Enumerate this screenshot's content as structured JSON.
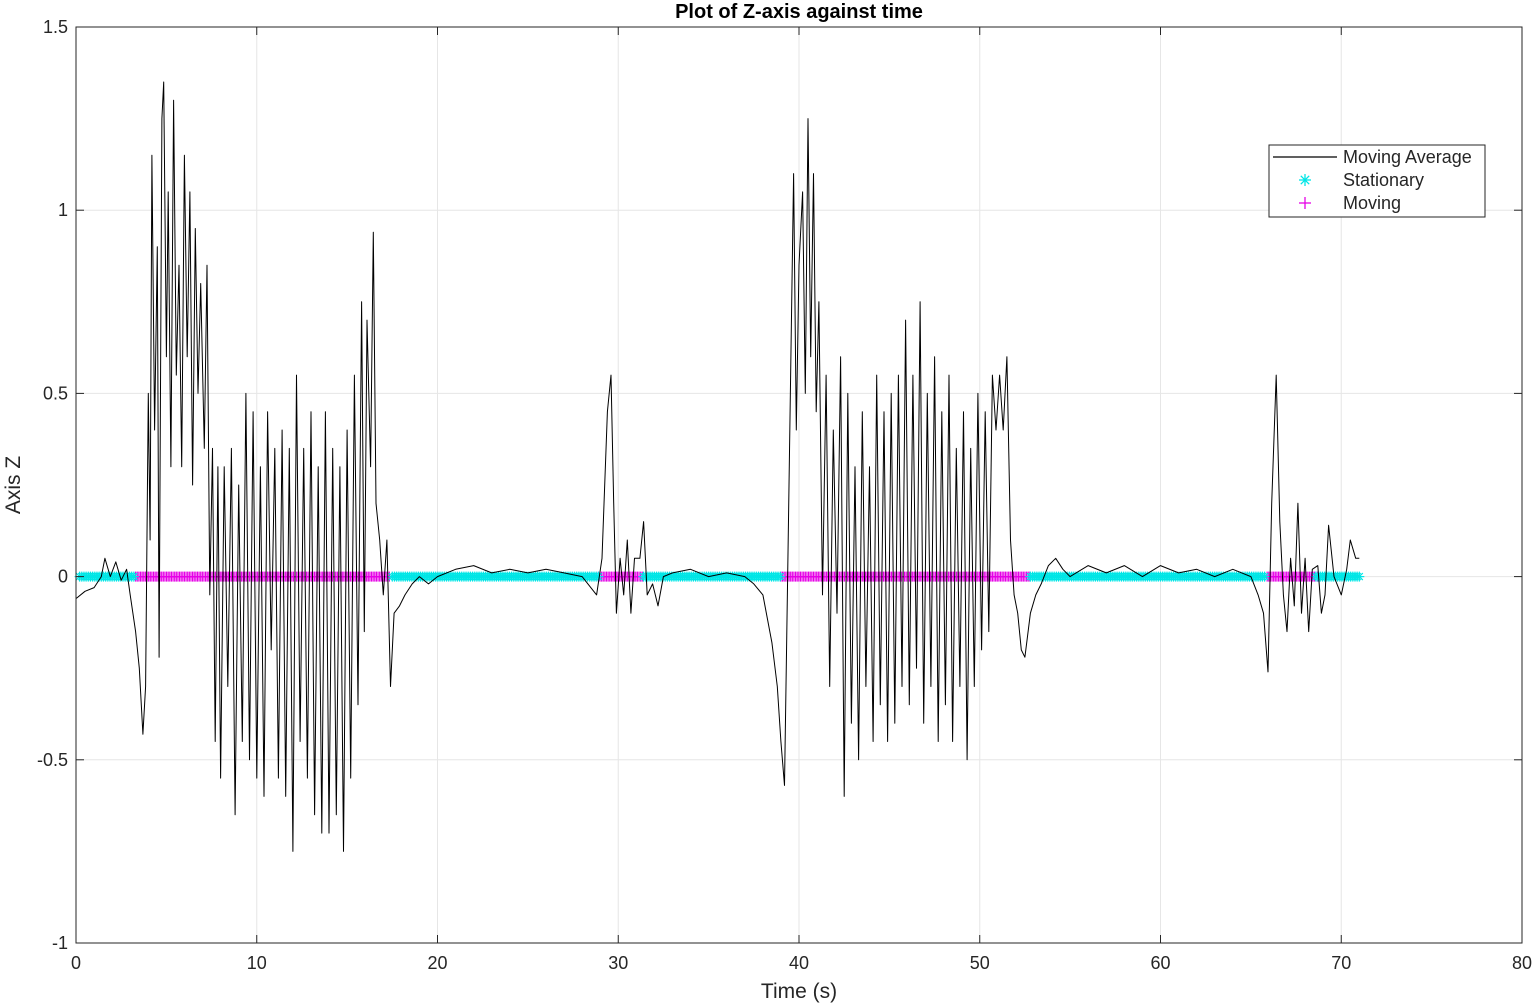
{
  "chart_data": {
    "type": "line",
    "title": "Plot of Z-axis against time",
    "xlabel": "Time (s)",
    "ylabel": "Axis Z",
    "xlim": [
      0,
      80
    ],
    "ylim": [
      -1,
      1.5
    ],
    "grid": true,
    "x_ticks": [
      0,
      10,
      20,
      30,
      40,
      50,
      60,
      70,
      80
    ],
    "x_tick_labels": [
      "0",
      "10",
      "20",
      "30",
      "40",
      "50",
      "60",
      "70",
      "80"
    ],
    "y_ticks": [
      -1,
      -0.5,
      0,
      0.5,
      1,
      1.5
    ],
    "y_tick_labels": [
      "-1",
      "-0.5",
      "0",
      "0.5",
      "1",
      "1.5"
    ],
    "legend_position": "top-right",
    "colors": {
      "moving_average": "#000000",
      "stationary": "#00e6e6",
      "moving": "#e600e6",
      "grid": "#e6e6e6",
      "axes": "#262626"
    },
    "series": [
      {
        "name": "Moving Average",
        "kind": "line",
        "points": [
          [
            0.0,
            -0.06
          ],
          [
            0.5,
            -0.04
          ],
          [
            1.0,
            -0.03
          ],
          [
            1.4,
            0.0
          ],
          [
            1.6,
            0.05
          ],
          [
            1.9,
            0.0
          ],
          [
            2.2,
            0.04
          ],
          [
            2.5,
            -0.01
          ],
          [
            2.8,
            0.02
          ],
          [
            3.0,
            -0.05
          ],
          [
            3.3,
            -0.15
          ],
          [
            3.5,
            -0.25
          ],
          [
            3.7,
            -0.43
          ],
          [
            3.85,
            -0.3
          ],
          [
            4.0,
            0.5
          ],
          [
            4.1,
            0.1
          ],
          [
            4.2,
            1.15
          ],
          [
            4.35,
            0.4
          ],
          [
            4.5,
            0.9
          ],
          [
            4.6,
            -0.22
          ],
          [
            4.75,
            1.25
          ],
          [
            4.85,
            1.35
          ],
          [
            5.0,
            0.6
          ],
          [
            5.1,
            1.05
          ],
          [
            5.25,
            0.3
          ],
          [
            5.4,
            1.3
          ],
          [
            5.55,
            0.55
          ],
          [
            5.7,
            0.85
          ],
          [
            5.85,
            0.3
          ],
          [
            6.0,
            1.15
          ],
          [
            6.15,
            0.6
          ],
          [
            6.3,
            1.05
          ],
          [
            6.45,
            0.25
          ],
          [
            6.6,
            0.95
          ],
          [
            6.75,
            0.5
          ],
          [
            6.9,
            0.8
          ],
          [
            7.1,
            0.35
          ],
          [
            7.25,
            0.85
          ],
          [
            7.4,
            -0.05
          ],
          [
            7.55,
            0.35
          ],
          [
            7.7,
            -0.45
          ],
          [
            7.85,
            0.3
          ],
          [
            8.0,
            -0.55
          ],
          [
            8.2,
            0.3
          ],
          [
            8.4,
            -0.3
          ],
          [
            8.6,
            0.35
          ],
          [
            8.8,
            -0.65
          ],
          [
            9.0,
            0.25
          ],
          [
            9.2,
            -0.45
          ],
          [
            9.4,
            0.5
          ],
          [
            9.6,
            -0.5
          ],
          [
            9.8,
            0.45
          ],
          [
            10.0,
            -0.55
          ],
          [
            10.2,
            0.3
          ],
          [
            10.4,
            -0.6
          ],
          [
            10.6,
            0.45
          ],
          [
            10.8,
            -0.2
          ],
          [
            11.0,
            0.35
          ],
          [
            11.2,
            -0.55
          ],
          [
            11.4,
            0.4
          ],
          [
            11.6,
            -0.6
          ],
          [
            11.8,
            0.35
          ],
          [
            12.0,
            -0.75
          ],
          [
            12.2,
            0.55
          ],
          [
            12.4,
            -0.45
          ],
          [
            12.6,
            0.35
          ],
          [
            12.8,
            -0.55
          ],
          [
            13.0,
            0.45
          ],
          [
            13.2,
            -0.65
          ],
          [
            13.4,
            0.3
          ],
          [
            13.6,
            -0.7
          ],
          [
            13.8,
            0.45
          ],
          [
            14.0,
            -0.7
          ],
          [
            14.2,
            0.35
          ],
          [
            14.4,
            -0.65
          ],
          [
            14.6,
            0.3
          ],
          [
            14.8,
            -0.75
          ],
          [
            15.0,
            0.4
          ],
          [
            15.2,
            -0.55
          ],
          [
            15.4,
            0.55
          ],
          [
            15.6,
            -0.35
          ],
          [
            15.8,
            0.75
          ],
          [
            15.95,
            -0.15
          ],
          [
            16.1,
            0.7
          ],
          [
            16.3,
            0.3
          ],
          [
            16.45,
            0.94
          ],
          [
            16.6,
            0.2
          ],
          [
            16.8,
            0.1
          ],
          [
            17.0,
            -0.05
          ],
          [
            17.2,
            0.1
          ],
          [
            17.4,
            -0.3
          ],
          [
            17.6,
            -0.1
          ],
          [
            17.9,
            -0.08
          ],
          [
            18.2,
            -0.05
          ],
          [
            18.6,
            -0.02
          ],
          [
            19.0,
            0.0
          ],
          [
            19.5,
            -0.02
          ],
          [
            20.0,
            0.0
          ],
          [
            21.0,
            0.02
          ],
          [
            22.0,
            0.03
          ],
          [
            23.0,
            0.01
          ],
          [
            24.0,
            0.02
          ],
          [
            25.0,
            0.01
          ],
          [
            26.0,
            0.02
          ],
          [
            27.0,
            0.01
          ],
          [
            28.0,
            0.0
          ],
          [
            28.8,
            -0.05
          ],
          [
            29.1,
            0.05
          ],
          [
            29.4,
            0.45
          ],
          [
            29.6,
            0.55
          ],
          [
            29.75,
            0.2
          ],
          [
            29.9,
            -0.1
          ],
          [
            30.1,
            0.05
          ],
          [
            30.3,
            -0.05
          ],
          [
            30.5,
            0.1
          ],
          [
            30.7,
            -0.1
          ],
          [
            30.9,
            0.05
          ],
          [
            31.2,
            0.05
          ],
          [
            31.4,
            0.15
          ],
          [
            31.6,
            -0.05
          ],
          [
            31.9,
            -0.02
          ],
          [
            32.2,
            -0.08
          ],
          [
            32.5,
            0.0
          ],
          [
            33.0,
            0.01
          ],
          [
            34.0,
            0.02
          ],
          [
            35.0,
            0.0
          ],
          [
            36.0,
            0.01
          ],
          [
            37.0,
            0.0
          ],
          [
            37.5,
            -0.02
          ],
          [
            38.0,
            -0.05
          ],
          [
            38.5,
            -0.18
          ],
          [
            38.8,
            -0.3
          ],
          [
            39.0,
            -0.45
          ],
          [
            39.2,
            -0.57
          ],
          [
            39.4,
            0.1
          ],
          [
            39.55,
            0.6
          ],
          [
            39.7,
            1.1
          ],
          [
            39.85,
            0.4
          ],
          [
            40.0,
            0.85
          ],
          [
            40.2,
            1.05
          ],
          [
            40.35,
            0.5
          ],
          [
            40.5,
            1.25
          ],
          [
            40.65,
            0.6
          ],
          [
            40.8,
            1.1
          ],
          [
            40.95,
            0.45
          ],
          [
            41.1,
            0.75
          ],
          [
            41.3,
            -0.05
          ],
          [
            41.5,
            0.55
          ],
          [
            41.7,
            -0.3
          ],
          [
            41.9,
            0.4
          ],
          [
            42.1,
            -0.1
          ],
          [
            42.3,
            0.6
          ],
          [
            42.5,
            -0.6
          ],
          [
            42.7,
            0.5
          ],
          [
            42.9,
            -0.4
          ],
          [
            43.1,
            0.3
          ],
          [
            43.3,
            -0.5
          ],
          [
            43.5,
            0.45
          ],
          [
            43.7,
            -0.3
          ],
          [
            43.9,
            0.3
          ],
          [
            44.1,
            -0.45
          ],
          [
            44.3,
            0.55
          ],
          [
            44.5,
            -0.35
          ],
          [
            44.7,
            0.45
          ],
          [
            44.9,
            -0.45
          ],
          [
            45.1,
            0.5
          ],
          [
            45.3,
            -0.4
          ],
          [
            45.5,
            0.55
          ],
          [
            45.7,
            -0.3
          ],
          [
            45.9,
            0.7
          ],
          [
            46.1,
            -0.35
          ],
          [
            46.3,
            0.55
          ],
          [
            46.5,
            -0.25
          ],
          [
            46.7,
            0.75
          ],
          [
            46.9,
            -0.4
          ],
          [
            47.1,
            0.5
          ],
          [
            47.3,
            -0.3
          ],
          [
            47.5,
            0.6
          ],
          [
            47.7,
            -0.45
          ],
          [
            47.9,
            0.45
          ],
          [
            48.1,
            -0.35
          ],
          [
            48.3,
            0.55
          ],
          [
            48.5,
            -0.45
          ],
          [
            48.7,
            0.35
          ],
          [
            48.9,
            -0.3
          ],
          [
            49.1,
            0.45
          ],
          [
            49.3,
            -0.5
          ],
          [
            49.5,
            0.35
          ],
          [
            49.7,
            -0.3
          ],
          [
            49.9,
            0.5
          ],
          [
            50.1,
            -0.2
          ],
          [
            50.3,
            0.45
          ],
          [
            50.5,
            -0.15
          ],
          [
            50.7,
            0.55
          ],
          [
            50.9,
            0.4
          ],
          [
            51.1,
            0.55
          ],
          [
            51.3,
            0.4
          ],
          [
            51.5,
            0.6
          ],
          [
            51.7,
            0.1
          ],
          [
            51.9,
            -0.05
          ],
          [
            52.1,
            -0.1
          ],
          [
            52.3,
            -0.2
          ],
          [
            52.5,
            -0.22
          ],
          [
            52.8,
            -0.1
          ],
          [
            53.1,
            -0.05
          ],
          [
            53.4,
            -0.02
          ],
          [
            53.8,
            0.03
          ],
          [
            54.2,
            0.05
          ],
          [
            54.6,
            0.02
          ],
          [
            55.0,
            0.0
          ],
          [
            56.0,
            0.03
          ],
          [
            57.0,
            0.01
          ],
          [
            58.0,
            0.03
          ],
          [
            59.0,
            0.0
          ],
          [
            60.0,
            0.03
          ],
          [
            61.0,
            0.01
          ],
          [
            62.0,
            0.02
          ],
          [
            63.0,
            0.0
          ],
          [
            64.0,
            0.02
          ],
          [
            65.0,
            0.0
          ],
          [
            65.4,
            -0.05
          ],
          [
            65.7,
            -0.1
          ],
          [
            65.95,
            -0.26
          ],
          [
            66.15,
            0.2
          ],
          [
            66.4,
            0.55
          ],
          [
            66.6,
            0.15
          ],
          [
            66.8,
            -0.05
          ],
          [
            67.0,
            -0.15
          ],
          [
            67.2,
            0.05
          ],
          [
            67.4,
            -0.08
          ],
          [
            67.6,
            0.2
          ],
          [
            67.8,
            -0.1
          ],
          [
            68.0,
            0.05
          ],
          [
            68.2,
            -0.15
          ],
          [
            68.4,
            0.02
          ],
          [
            68.7,
            0.03
          ],
          [
            68.9,
            -0.1
          ],
          [
            69.1,
            -0.05
          ],
          [
            69.3,
            0.14
          ],
          [
            69.6,
            0.0
          ],
          [
            70.0,
            -0.05
          ],
          [
            70.3,
            0.02
          ],
          [
            70.5,
            0.1
          ],
          [
            70.8,
            0.05
          ],
          [
            71.0,
            0.05
          ]
        ]
      },
      {
        "name": "Stationary",
        "kind": "markers",
        "marker": "asterisk",
        "y": 0,
        "x_ranges": [
          [
            0.2,
            3.3
          ],
          [
            17.5,
            28.9
          ],
          [
            31.4,
            39.0
          ],
          [
            52.8,
            65.8
          ],
          [
            68.6,
            71.0
          ]
        ]
      },
      {
        "name": "Moving",
        "kind": "markers",
        "marker": "plus",
        "y": 0,
        "x_ranges": [
          [
            3.3,
            17.4
          ],
          [
            28.9,
            31.4
          ],
          [
            39.0,
            52.8
          ],
          [
            65.9,
            68.7
          ]
        ]
      }
    ]
  },
  "legend": {
    "items": [
      "Moving Average",
      "Stationary",
      "Moving"
    ]
  }
}
